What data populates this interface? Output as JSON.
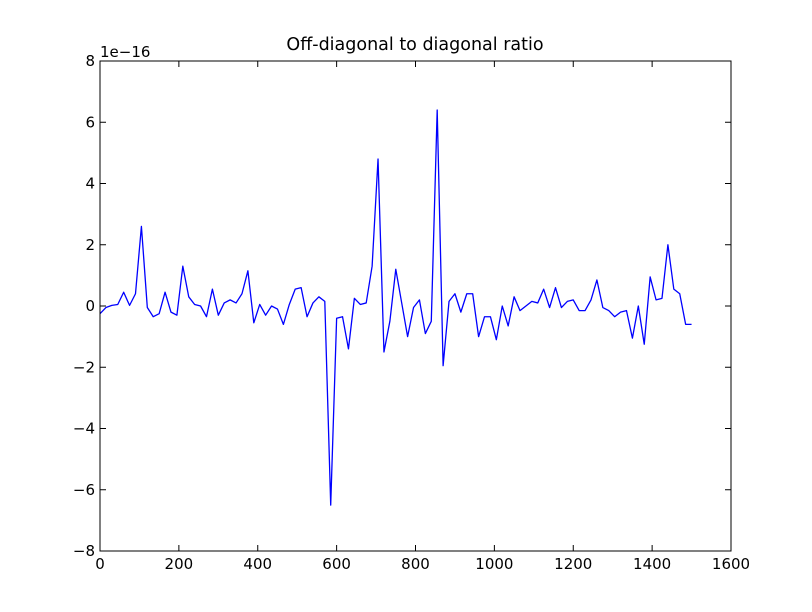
{
  "chart_data": {
    "type": "line",
    "title": "Off-diagonal to diagonal ratio",
    "xlabel": "",
    "ylabel": "",
    "y_scale_label": "1e−16",
    "xlim": [
      0,
      1600
    ],
    "ylim": [
      -8,
      8
    ],
    "x_ticks": [
      0,
      200,
      400,
      600,
      800,
      1000,
      1200,
      1400,
      1600
    ],
    "y_ticks": [
      -8,
      -6,
      -4,
      -2,
      0,
      2,
      4,
      6,
      8
    ],
    "x_tick_labels": [
      "0",
      "200",
      "400",
      "600",
      "800",
      "1000",
      "1200",
      "1400",
      "1600"
    ],
    "y_tick_labels": [
      "−8",
      "−6",
      "−4",
      "−2",
      "0",
      "2",
      "4",
      "6",
      "8"
    ],
    "grid": false,
    "colors": {
      "series": "#0000ff",
      "axes": "#000000",
      "background": "#ffffff"
    },
    "series": [
      {
        "x": [
          0,
          15,
          30,
          45,
          60,
          75,
          90,
          105,
          120,
          135,
          150,
          165,
          180,
          195,
          210,
          225,
          240,
          255,
          270,
          285,
          300,
          315,
          330,
          345,
          360,
          375,
          390,
          405,
          420,
          435,
          450,
          465,
          480,
          495,
          510,
          525,
          540,
          555,
          570,
          585,
          600,
          615,
          630,
          645,
          660,
          675,
          690,
          705,
          720,
          735,
          750,
          765,
          780,
          795,
          810,
          825,
          840,
          855,
          870,
          885,
          900,
          915,
          930,
          945,
          960,
          975,
          990,
          1005,
          1020,
          1035,
          1050,
          1065,
          1080,
          1095,
          1110,
          1125,
          1140,
          1155,
          1170,
          1185,
          1200,
          1215,
          1230,
          1245,
          1260,
          1275,
          1290,
          1305,
          1320,
          1335,
          1350,
          1365,
          1380,
          1395,
          1410,
          1425,
          1440,
          1455,
          1470,
          1485,
          1500
        ],
        "values": [
          -0.25,
          -0.05,
          0.02,
          0.05,
          0.45,
          0.02,
          0.4,
          2.6,
          -0.05,
          -0.35,
          -0.25,
          0.45,
          -0.2,
          -0.3,
          1.3,
          0.3,
          0.05,
          0.0,
          -0.35,
          0.55,
          -0.3,
          0.1,
          0.2,
          0.1,
          0.4,
          1.15,
          -0.55,
          0.05,
          -0.3,
          0.0,
          -0.1,
          -0.6,
          0.05,
          0.55,
          0.6,
          -0.35,
          0.1,
          0.3,
          0.15,
          -6.5,
          -0.4,
          -0.35,
          -1.4,
          0.25,
          0.05,
          0.1,
          1.3,
          4.8,
          -1.5,
          -0.5,
          1.2,
          0.1,
          -1.0,
          -0.05,
          0.2,
          -0.9,
          -0.5,
          6.4,
          -1.95,
          0.15,
          0.4,
          -0.2,
          0.4,
          0.4,
          -1.0,
          -0.35,
          -0.35,
          -1.1,
          0.0,
          -0.65,
          0.3,
          -0.15,
          0.0,
          0.15,
          0.1,
          0.55,
          -0.05,
          0.6,
          -0.05,
          0.15,
          0.2,
          -0.15,
          -0.15,
          0.2,
          0.85,
          -0.05,
          -0.15,
          -0.35,
          -0.2,
          -0.15,
          -1.05,
          0.0,
          -1.25,
          0.95,
          0.2,
          0.25,
          2.0,
          0.55,
          0.4,
          -0.6,
          -0.6
        ]
      }
    ]
  }
}
